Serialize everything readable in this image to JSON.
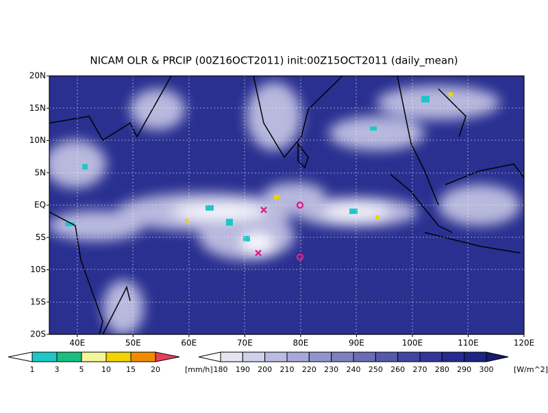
{
  "title": "NICAM OLR & PRCIP (00Z16OCT2011) init:00Z15OCT2011 (daily_mean)",
  "map": {
    "lat_labels": [
      "20N",
      "15N",
      "10N",
      "5N",
      "EQ",
      "5S",
      "10S",
      "15S",
      "20S"
    ],
    "lon_labels": [
      "40E",
      "50E",
      "60E",
      "70E",
      "80E",
      "90E",
      "100E",
      "110E",
      "120E"
    ]
  },
  "precip_colorbar": {
    "labels": [
      "1",
      "3",
      "5",
      "10",
      "15",
      "20"
    ],
    "unit": "[mm/h]",
    "colors": [
      "#ffffff",
      "#1ec8c8",
      "#18c080",
      "#f4f49a",
      "#f2d200",
      "#f08a00",
      "#e8405a"
    ]
  },
  "olr_colorbar": {
    "labels": [
      "180",
      "190",
      "200",
      "210",
      "220",
      "230",
      "240",
      "250",
      "260",
      "270",
      "280",
      "290",
      "300"
    ],
    "unit": "[W/m^2]",
    "colors": [
      "#ffffff",
      "#e4e4f2",
      "#d0d0ea",
      "#bcbce2",
      "#a8a8d8",
      "#9494cc",
      "#7f80c0",
      "#6a6cb6",
      "#5658ac",
      "#4244a2",
      "#32369a",
      "#262c90",
      "#1e2484",
      "#161a70"
    ]
  }
}
